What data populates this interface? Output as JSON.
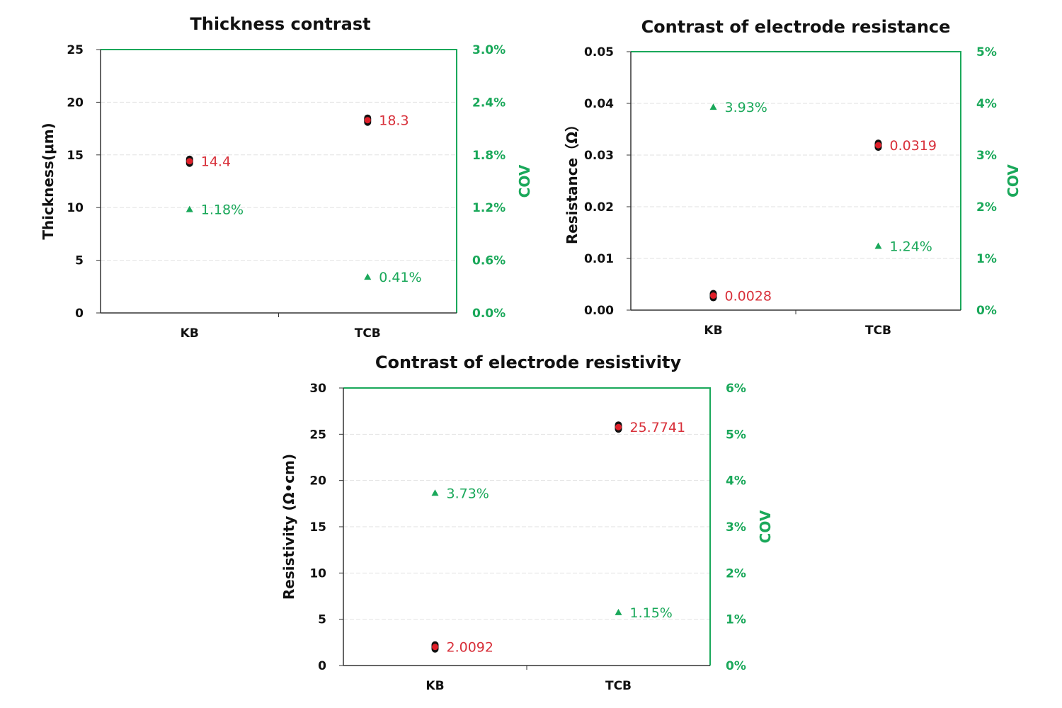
{
  "colors": {
    "value": "#e0202a",
    "value_label": "#d8303a",
    "cov": "#1aa85a",
    "axis_right": "#1aa85a"
  },
  "chart_data": [
    {
      "type": "scatter",
      "title": "Thickness contrast",
      "categories": [
        "KB",
        "TCB"
      ],
      "ylabel": "Thickness(μm)",
      "ylim": [
        0,
        25
      ],
      "yticks": [
        "0",
        "5",
        "10",
        "15",
        "20",
        "25"
      ],
      "y2label": "COV",
      "y2lim": [
        0,
        3.0
      ],
      "y2ticks": [
        "0.0%",
        "0.6%",
        "1.2%",
        "1.8%",
        "2.4%",
        "3.0%"
      ],
      "values": [
        14.4,
        18.3
      ],
      "value_labels": [
        "14.4",
        "18.3"
      ],
      "cov": [
        1.18,
        0.41
      ],
      "cov_labels": [
        "1.18%",
        "0.41%"
      ],
      "grid": true
    },
    {
      "type": "scatter",
      "title": "Contrast of electrode resistance",
      "categories": [
        "KB",
        "TCB"
      ],
      "ylabel": "Resistance（Ω）",
      "ylim": [
        0,
        0.05
      ],
      "yticks": [
        "0.00",
        "0.01",
        "0.02",
        "0.03",
        "0.04",
        "0.05"
      ],
      "y2label": "COV",
      "y2lim": [
        0,
        5
      ],
      "y2ticks": [
        "0%",
        "1%",
        "2%",
        "3%",
        "4%",
        "5%"
      ],
      "values": [
        0.0028,
        0.0319
      ],
      "value_labels": [
        "0.0028",
        "0.0319"
      ],
      "cov": [
        3.93,
        1.24
      ],
      "cov_labels": [
        "3.93%",
        "1.24%"
      ],
      "grid": true
    },
    {
      "type": "scatter",
      "title": "Contrast of electrode resistivity",
      "categories": [
        "KB",
        "TCB"
      ],
      "ylabel": "Resistivity (Ω•cm)",
      "ylim": [
        0,
        30
      ],
      "yticks": [
        "0",
        "5",
        "10",
        "15",
        "20",
        "25",
        "30"
      ],
      "y2label": "COV",
      "y2lim": [
        0,
        6
      ],
      "y2ticks": [
        "0%",
        "1%",
        "2%",
        "3%",
        "4%",
        "5%",
        "6%"
      ],
      "values": [
        2.0092,
        25.7741
      ],
      "value_labels": [
        "2.0092",
        "25.7741"
      ],
      "cov": [
        3.73,
        1.15
      ],
      "cov_labels": [
        "3.73%",
        "1.15%"
      ],
      "grid": true
    }
  ]
}
